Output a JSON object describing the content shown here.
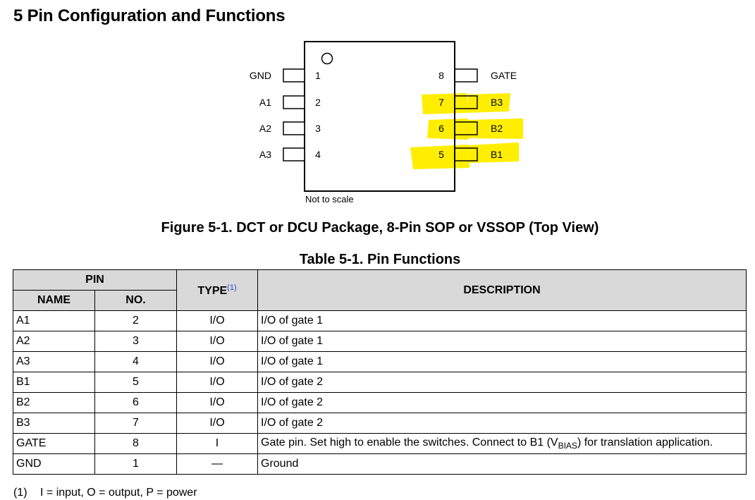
{
  "section_title": "5 Pin Configuration and Functions",
  "package": {
    "left_pins": [
      {
        "name": "GND",
        "no": "1"
      },
      {
        "name": "A1",
        "no": "2"
      },
      {
        "name": "A2",
        "no": "3"
      },
      {
        "name": "A3",
        "no": "4"
      }
    ],
    "right_pins": [
      {
        "name": "GATE",
        "no": "8",
        "highlighted": false
      },
      {
        "name": "B3",
        "no": "7",
        "highlighted": true
      },
      {
        "name": "B2",
        "no": "6",
        "highlighted": true
      },
      {
        "name": "B1",
        "no": "5",
        "highlighted": true
      }
    ],
    "scale_note": "Not to scale",
    "highlight_color": "#ffee00"
  },
  "figure_caption": "Figure 5-1. DCT or DCU Package, 8-Pin SOP or VSSOP (Top View)",
  "table_caption": "Table 5-1. Pin Functions",
  "table": {
    "header": {
      "pin": "PIN",
      "name": "NAME",
      "no": "NO.",
      "type": "TYPE",
      "type_ref": "(1)",
      "description": "DESCRIPTION"
    },
    "rows": [
      {
        "name": "A1",
        "no": "2",
        "type": "I/O",
        "description": "I/O of gate 1"
      },
      {
        "name": "A2",
        "no": "3",
        "type": "I/O",
        "description": "I/O of gate 1"
      },
      {
        "name": "A3",
        "no": "4",
        "type": "I/O",
        "description": "I/O of gate 1"
      },
      {
        "name": "B1",
        "no": "5",
        "type": "I/O",
        "description": "I/O of gate 2"
      },
      {
        "name": "B2",
        "no": "6",
        "type": "I/O",
        "description": "I/O of gate 2"
      },
      {
        "name": "B3",
        "no": "7",
        "type": "I/O",
        "description": "I/O of gate 2"
      },
      {
        "name": "GATE",
        "no": "8",
        "type": "I",
        "description": "Gate pin. Set high to enable the switches. Connect to B1 (V",
        "description_sub": "BIAS",
        "description_tail": ") for translation application."
      },
      {
        "name": "GND",
        "no": "1",
        "type": "—",
        "description": "Ground"
      }
    ]
  },
  "footnote": {
    "number": "(1)",
    "text": "I = input, O = output, P = power"
  }
}
